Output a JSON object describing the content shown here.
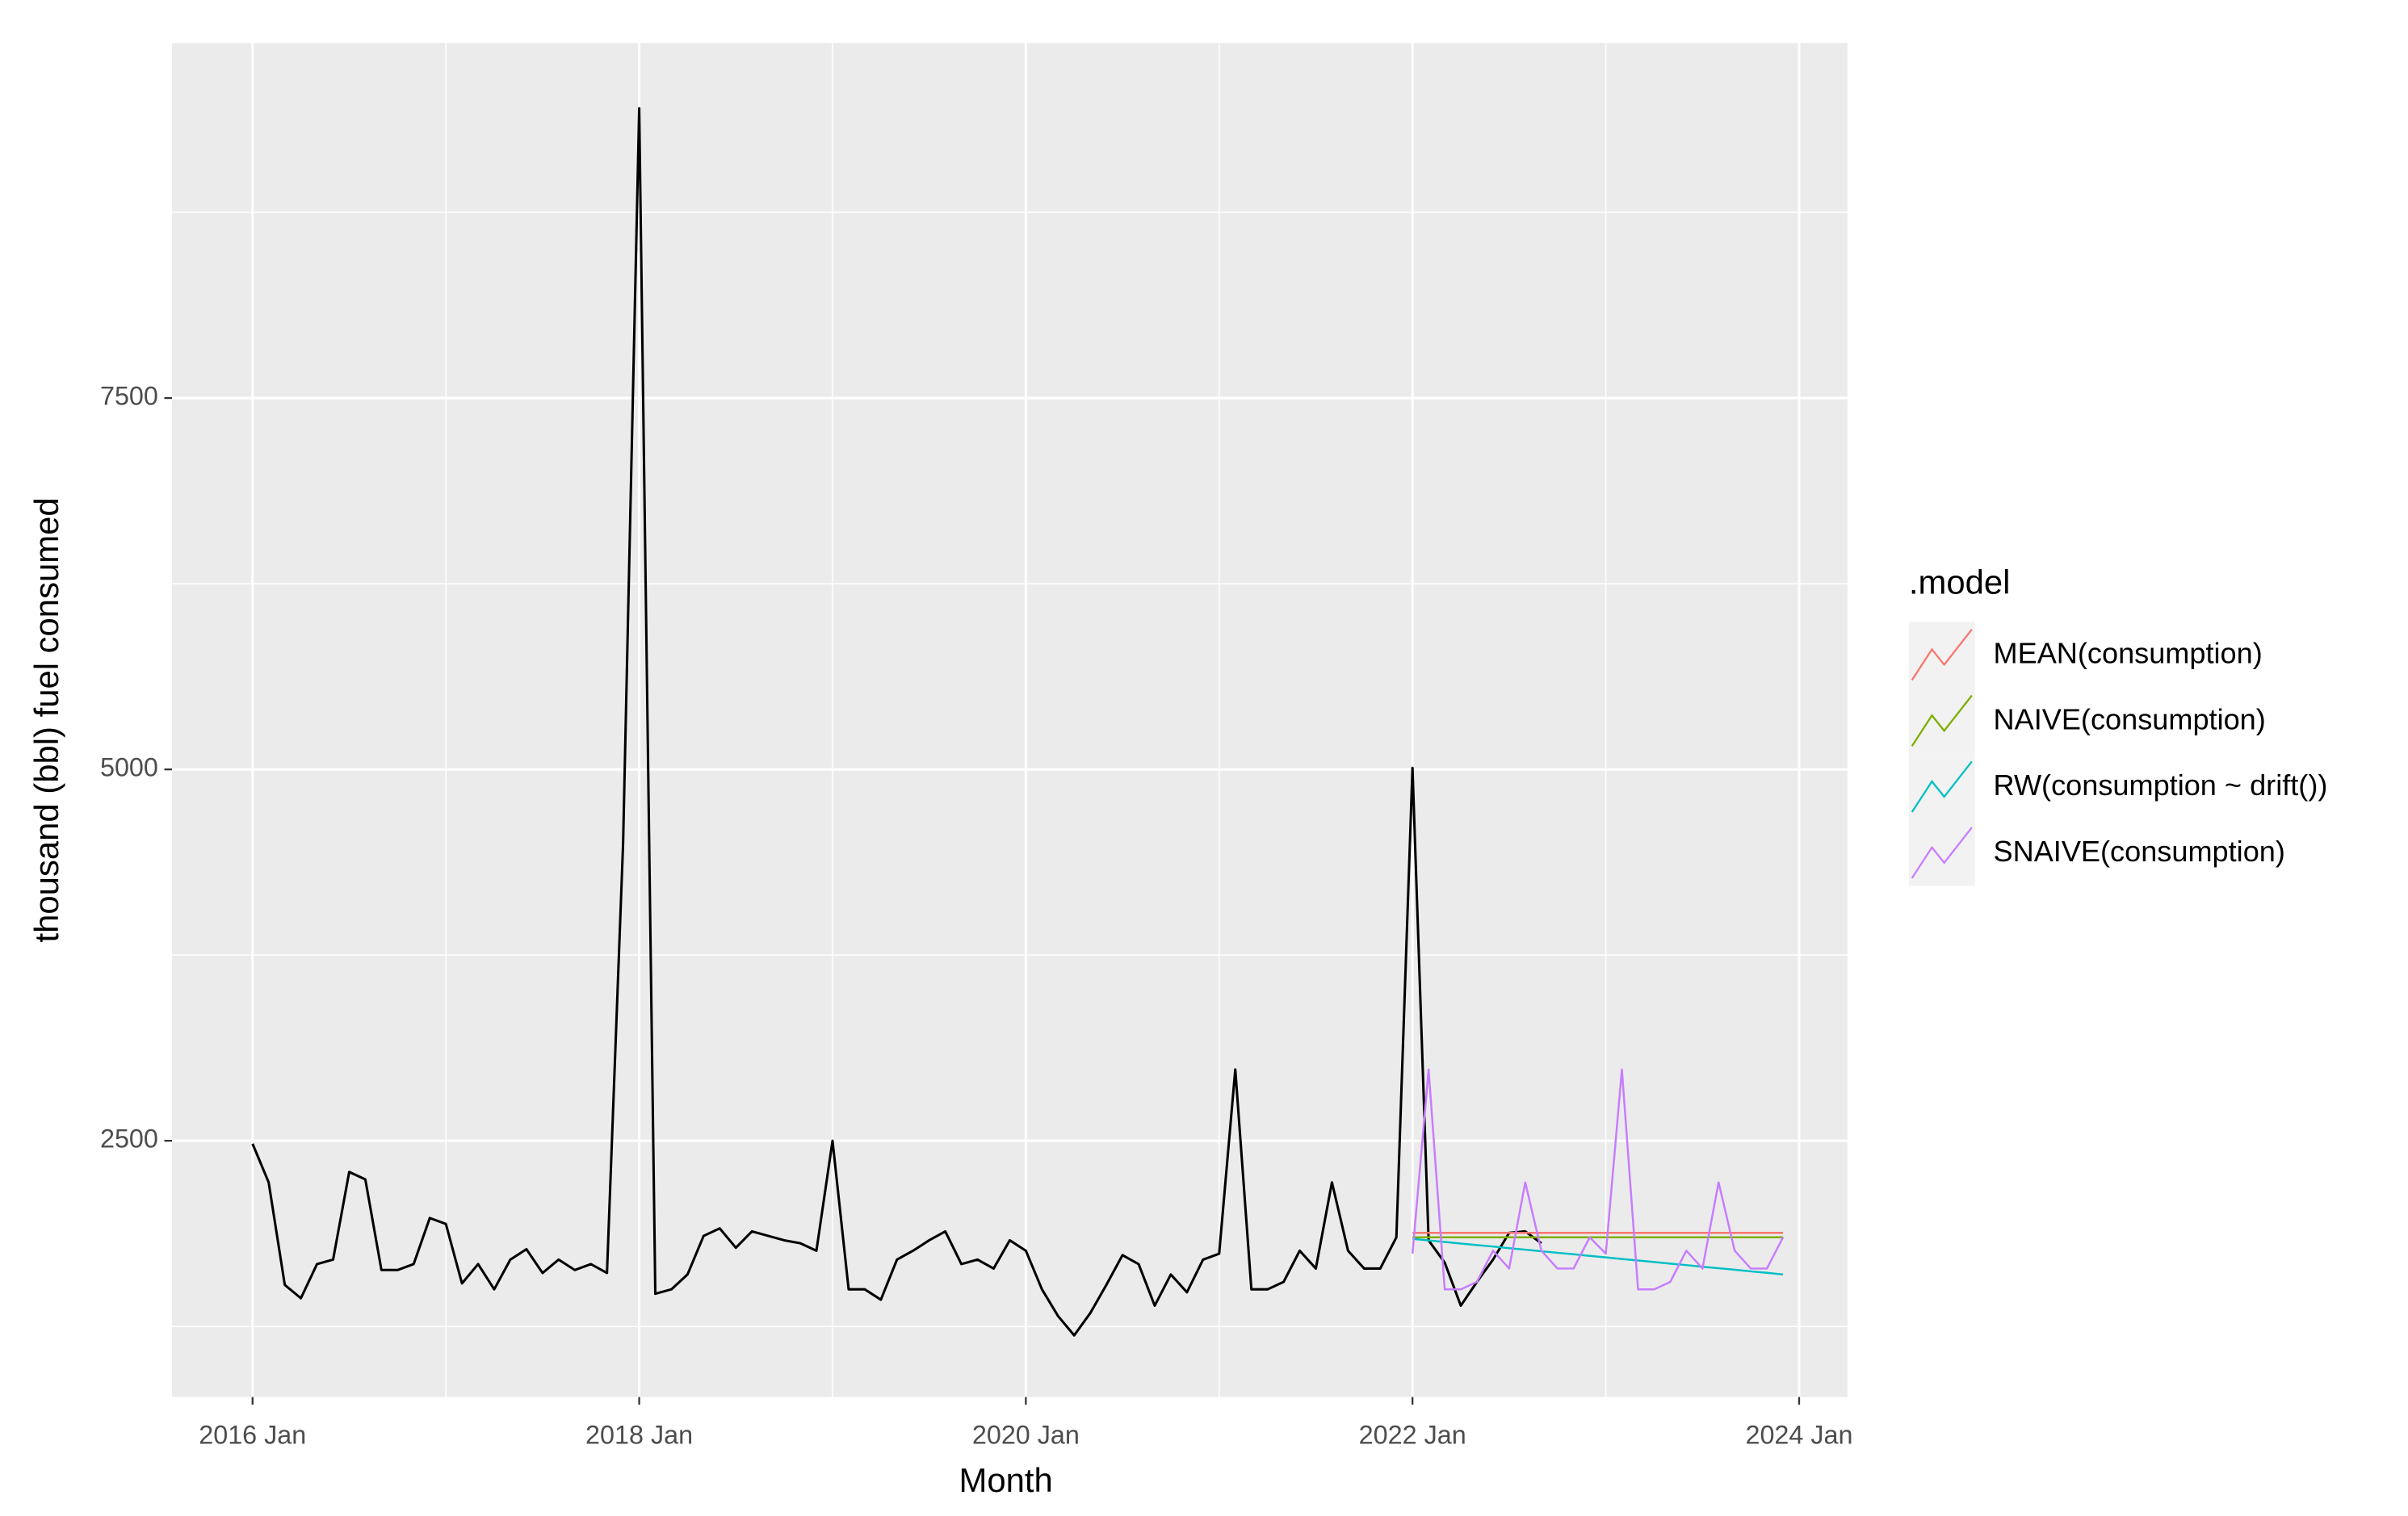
{
  "chart_data": {
    "type": "line",
    "x_label": "Month",
    "y_label": "thousand (bbl) fuel consumed",
    "legend_title": ".model",
    "legend_position": "right",
    "grid": true,
    "background": "#EBEBEB",
    "xlim": [
      "2015 Aug",
      "2024 Apr"
    ],
    "xticks": [
      "2016 Jan",
      "2018 Jan",
      "2020 Jan",
      "2022 Jan",
      "2024 Jan"
    ],
    "xminor_ticks": [
      "2017 Jan",
      "2019 Jan",
      "2021 Jan",
      "2023 Jan"
    ],
    "ylim": [
      775,
      9890
    ],
    "yticks": [
      2500,
      5000,
      7500
    ],
    "yminor_ticks": [
      1250,
      3750,
      6250,
      8750
    ],
    "observed": {
      "color": "#000000",
      "x": [
        "2016 Jan",
        "2016 Feb",
        "2016 Mar",
        "2016 Apr",
        "2016 May",
        "2016 Jun",
        "2016 Jul",
        "2016 Aug",
        "2016 Sep",
        "2016 Oct",
        "2016 Nov",
        "2016 Dec",
        "2017 Jan",
        "2017 Feb",
        "2017 Mar",
        "2017 Apr",
        "2017 May",
        "2017 Jun",
        "2017 Jul",
        "2017 Aug",
        "2017 Sep",
        "2017 Oct",
        "2017 Nov",
        "2017 Dec",
        "2018 Jan",
        "2018 Feb",
        "2018 Mar",
        "2018 Apr",
        "2018 May",
        "2018 Jun",
        "2018 Jul",
        "2018 Aug",
        "2018 Sep",
        "2018 Oct",
        "2018 Nov",
        "2018 Dec",
        "2019 Jan",
        "2019 Feb",
        "2019 Mar",
        "2019 Apr",
        "2019 May",
        "2019 Jun",
        "2019 Jul",
        "2019 Aug",
        "2019 Sep",
        "2019 Oct",
        "2019 Nov",
        "2019 Dec",
        "2020 Jan",
        "2020 Feb",
        "2020 Mar",
        "2020 Apr",
        "2020 May",
        "2020 Jun",
        "2020 Jul",
        "2020 Aug",
        "2020 Sep",
        "2020 Oct",
        "2020 Nov",
        "2020 Dec",
        "2021 Jan",
        "2021 Feb",
        "2021 Mar",
        "2021 Apr",
        "2021 May",
        "2021 Jun",
        "2021 Jul",
        "2021 Aug",
        "2021 Sep",
        "2021 Oct",
        "2021 Nov",
        "2021 Dec",
        "2022 Jan",
        "2022 Feb",
        "2022 Mar",
        "2022 Apr",
        "2022 May",
        "2022 Jun",
        "2022 Jul",
        "2022 Aug",
        "2022 Sep"
      ],
      "values": [
        2480,
        2220,
        1530,
        1440,
        1670,
        1700,
        2290,
        2240,
        1630,
        1630,
        1670,
        1980,
        1940,
        1540,
        1670,
        1500,
        1700,
        1770,
        1610,
        1700,
        1630,
        1670,
        1610,
        4500,
        9450,
        1470,
        1500,
        1600,
        1860,
        1910,
        1780,
        1890,
        1860,
        1830,
        1810,
        1760,
        2500,
        1500,
        1500,
        1430,
        1700,
        1760,
        1830,
        1890,
        1670,
        1700,
        1640,
        1830,
        1760,
        1500,
        1320,
        1190,
        1340,
        1530,
        1730,
        1670,
        1390,
        1600,
        1480,
        1700,
        1740,
        2980,
        1500,
        1500,
        1550,
        1760,
        1640,
        2220,
        1760,
        1640,
        1640,
        1850,
        5010,
        1830,
        1680,
        1390,
        1550,
        1700,
        1880,
        1890,
        1810
      ]
    },
    "series": [
      {
        "name": "MEAN(consumption)",
        "color": "#F8766D",
        "x": [
          "2022 Jan",
          "2022 Feb",
          "2022 Mar",
          "2022 Apr",
          "2022 May",
          "2022 Jun",
          "2022 Jul",
          "2022 Aug",
          "2022 Sep",
          "2022 Oct",
          "2022 Nov",
          "2022 Dec",
          "2023 Jan",
          "2023 Feb",
          "2023 Mar",
          "2023 Apr",
          "2023 May",
          "2023 Jun",
          "2023 Jul",
          "2023 Aug",
          "2023 Sep",
          "2023 Oct",
          "2023 Nov",
          "2023 Dec"
        ],
        "values": [
          1880,
          1880,
          1880,
          1880,
          1880,
          1880,
          1880,
          1880,
          1880,
          1880,
          1880,
          1880,
          1880,
          1880,
          1880,
          1880,
          1880,
          1880,
          1880,
          1880,
          1880,
          1880,
          1880,
          1880
        ]
      },
      {
        "name": "NAIVE(consumption)",
        "color": "#7CAE00",
        "x": [
          "2022 Jan",
          "2022 Feb",
          "2022 Mar",
          "2022 Apr",
          "2022 May",
          "2022 Jun",
          "2022 Jul",
          "2022 Aug",
          "2022 Sep",
          "2022 Oct",
          "2022 Nov",
          "2022 Dec",
          "2023 Jan",
          "2023 Feb",
          "2023 Mar",
          "2023 Apr",
          "2023 May",
          "2023 Jun",
          "2023 Jul",
          "2023 Aug",
          "2023 Sep",
          "2023 Oct",
          "2023 Nov",
          "2023 Dec"
        ],
        "values": [
          1850,
          1850,
          1850,
          1850,
          1850,
          1850,
          1850,
          1850,
          1850,
          1850,
          1850,
          1850,
          1850,
          1850,
          1850,
          1850,
          1850,
          1850,
          1850,
          1850,
          1850,
          1850,
          1850,
          1850
        ]
      },
      {
        "name": "RW(consumption ~ drift())",
        "color": "#00BFC4",
        "x": [
          "2022 Jan",
          "2022 Feb",
          "2022 Mar",
          "2022 Apr",
          "2022 May",
          "2022 Jun",
          "2022 Jul",
          "2022 Aug",
          "2022 Sep",
          "2022 Oct",
          "2022 Nov",
          "2022 Dec",
          "2023 Jan",
          "2023 Feb",
          "2023 Mar",
          "2023 Apr",
          "2023 May",
          "2023 Jun",
          "2023 Jul",
          "2023 Aug",
          "2023 Sep",
          "2023 Oct",
          "2023 Nov",
          "2023 Dec"
        ],
        "values": [
          1840,
          1829,
          1819,
          1808,
          1798,
          1788,
          1777,
          1767,
          1756,
          1746,
          1736,
          1725,
          1715,
          1704,
          1694,
          1684,
          1673,
          1663,
          1652,
          1642,
          1632,
          1621,
          1611,
          1600
        ]
      },
      {
        "name": "SNAIVE(consumption)",
        "color": "#C77CFF",
        "x": [
          "2022 Jan",
          "2022 Feb",
          "2022 Mar",
          "2022 Apr",
          "2022 May",
          "2022 Jun",
          "2022 Jul",
          "2022 Aug",
          "2022 Sep",
          "2022 Oct",
          "2022 Nov",
          "2022 Dec",
          "2023 Jan",
          "2023 Feb",
          "2023 Mar",
          "2023 Apr",
          "2023 May",
          "2023 Jun",
          "2023 Jul",
          "2023 Aug",
          "2023 Sep",
          "2023 Oct",
          "2023 Nov",
          "2023 Dec"
        ],
        "values": [
          1740,
          2980,
          1500,
          1500,
          1550,
          1760,
          1640,
          2220,
          1760,
          1640,
          1640,
          1850,
          1740,
          2980,
          1500,
          1500,
          1550,
          1760,
          1640,
          2220,
          1760,
          1640,
          1640,
          1850
        ]
      }
    ]
  }
}
